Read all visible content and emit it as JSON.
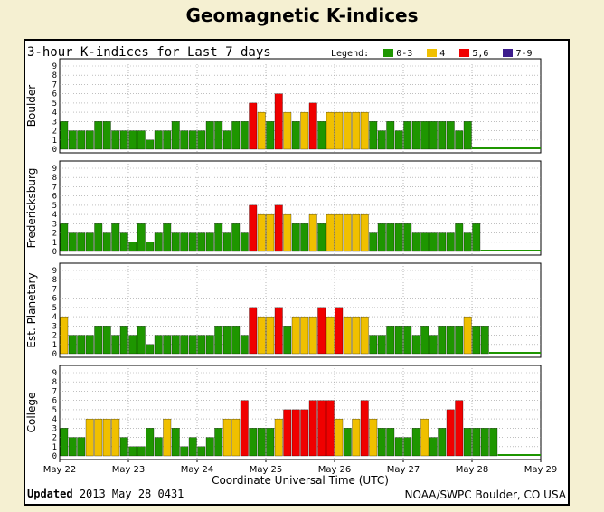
{
  "title": "Geomagnetic K-indices",
  "subtitle": "3-hour K-indices for Last 7 days",
  "legend": {
    "label": "Legend:",
    "items": [
      {
        "label": "0-3",
        "color": "#1e9600"
      },
      {
        "label": "4",
        "color": "#f0c000"
      },
      {
        "label": "5,6",
        "color": "#f00000"
      },
      {
        "label": "7-9",
        "color": "#3c1c8c"
      }
    ]
  },
  "footer": {
    "updated_label": "Updated",
    "updated_value": "2013 May 28 0431",
    "source": "NOAA/SWPC Boulder, CO USA"
  },
  "chart_data": {
    "type": "bar",
    "x_tick_labels": [
      "May 22",
      "May 23",
      "May 24",
      "May 25",
      "May 26",
      "May 27",
      "May 28",
      "May 29"
    ],
    "xlabel": "Coordinate Universal Time (UTC)",
    "y_ticks": [
      "0",
      "1",
      "2",
      "3",
      "4",
      "5",
      "6",
      "7",
      "8",
      "9"
    ],
    "ylim": [
      0,
      9
    ],
    "grid": true,
    "panels": [
      {
        "name": "Boulder",
        "values": [
          3,
          2,
          2,
          2,
          3,
          3,
          2,
          2,
          2,
          2,
          1,
          2,
          2,
          3,
          2,
          2,
          2,
          3,
          3,
          2,
          3,
          3,
          5,
          4,
          3,
          6,
          4,
          3,
          4,
          5,
          3,
          4,
          4,
          4,
          4,
          4,
          3,
          2,
          3,
          2,
          3,
          3,
          3,
          3,
          3,
          3,
          2,
          3
        ]
      },
      {
        "name": "Fredericksburg",
        "values": [
          3,
          2,
          2,
          2,
          3,
          2,
          3,
          2,
          1,
          3,
          1,
          2,
          3,
          2,
          2,
          2,
          2,
          2,
          3,
          2,
          3,
          2,
          5,
          4,
          4,
          5,
          4,
          3,
          3,
          4,
          3,
          4,
          4,
          4,
          4,
          4,
          2,
          3,
          3,
          3,
          3,
          2,
          2,
          2,
          2,
          2,
          3,
          2,
          3
        ]
      },
      {
        "name": "Est. Planetary",
        "values": [
          4,
          2,
          2,
          2,
          3,
          3,
          2,
          3,
          2,
          3,
          1,
          2,
          2,
          2,
          2,
          2,
          2,
          2,
          3,
          3,
          3,
          2,
          5,
          4,
          4,
          5,
          3,
          4,
          4,
          4,
          5,
          4,
          5,
          4,
          4,
          4,
          2,
          2,
          3,
          3,
          3,
          2,
          3,
          2,
          3,
          3,
          3,
          4,
          3,
          3
        ]
      },
      {
        "name": "College",
        "values": [
          3,
          2,
          2,
          4,
          4,
          4,
          4,
          2,
          1,
          1,
          3,
          2,
          4,
          3,
          1,
          2,
          1,
          2,
          3,
          4,
          4,
          6,
          3,
          3,
          3,
          4,
          5,
          5,
          5,
          6,
          6,
          6,
          4,
          3,
          4,
          6,
          4,
          3,
          3,
          2,
          2,
          3,
          4,
          2,
          3,
          5,
          6,
          3,
          3,
          3,
          3
        ]
      }
    ]
  }
}
